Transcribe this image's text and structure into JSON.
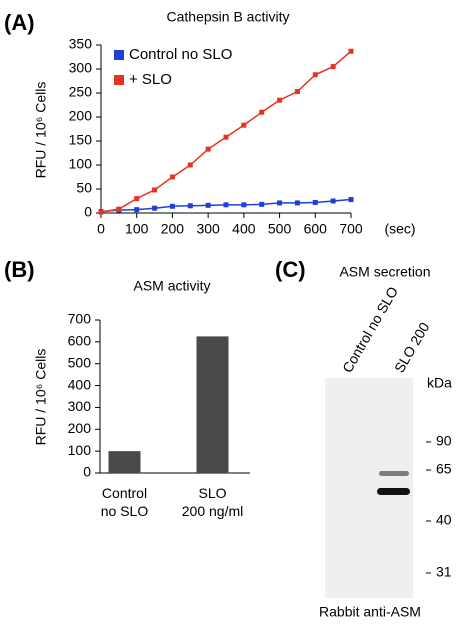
{
  "chart_data": [
    {
      "type": "line",
      "panel_label": "(A)",
      "title": "Cathepsin B activity",
      "y_label": "RFU / 10⁶ Cells",
      "x_label": "(sec)",
      "x": [
        0,
        50,
        100,
        150,
        200,
        250,
        300,
        350,
        400,
        450,
        500,
        550,
        600,
        650,
        700
      ],
      "series": [
        {
          "name": "Control no SLO",
          "color": "#1f3fd6",
          "values": [
            3,
            6,
            7,
            10,
            14,
            15,
            16,
            17,
            17,
            18,
            21,
            21,
            22,
            25,
            28
          ]
        },
        {
          "name": "+ SLO",
          "color": "#e8321e",
          "values": [
            2,
            8,
            30,
            48,
            75,
            100,
            133,
            158,
            183,
            210,
            235,
            253,
            288,
            305,
            337
          ]
        }
      ],
      "xlim": [
        0,
        700
      ],
      "xticks": [
        0,
        100,
        200,
        300,
        400,
        500,
        600,
        700
      ],
      "ylim": [
        0,
        350
      ],
      "yticks": [
        0,
        50,
        100,
        150,
        200,
        250,
        300,
        350
      ],
      "legend": "upper-left"
    },
    {
      "type": "bar",
      "panel_label": "(B)",
      "title": "ASM activity",
      "y_label": "RFU / 10⁶ Cells",
      "categories": [
        "Control\nno SLO",
        "SLO\n200 ng/ml"
      ],
      "values": [
        100,
        625
      ],
      "color": "#4a4a4a",
      "ylim": [
        0,
        700
      ],
      "yticks": [
        0,
        100,
        200,
        300,
        400,
        500,
        600,
        700
      ]
    },
    {
      "type": "blot",
      "panel_label": "(C)",
      "title": "ASM secretion",
      "lanes": [
        "Control no SLO",
        "SLO 200"
      ],
      "unit_label": "kDa",
      "markers": [
        90,
        65,
        40,
        31
      ],
      "caption": "Rabbit anti-ASM"
    }
  ]
}
